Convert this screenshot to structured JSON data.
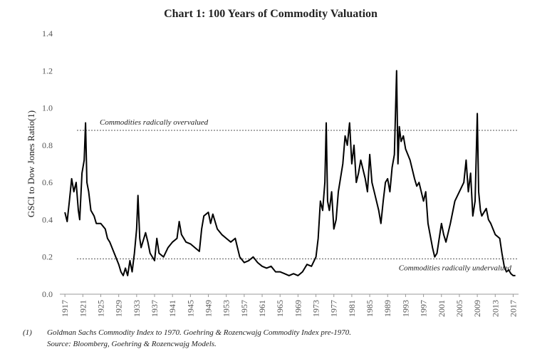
{
  "chart_data": {
    "type": "line",
    "title": "Chart 1: 100 Years of Commodity Valuation",
    "y_label": "GSCI to Dow Jones Ratio(1)",
    "x": [
      1917,
      1917.5,
      1918,
      1918.5,
      1919,
      1919.5,
      1920,
      1920.3,
      1920.8,
      1921.3,
      1921.6,
      1921.9,
      1922.3,
      1922.8,
      1923.5,
      1924,
      1925,
      1926,
      1926.5,
      1927,
      1928,
      1929,
      1929.5,
      1930,
      1930.5,
      1931,
      1931.5,
      1932,
      1932.5,
      1933,
      1933.3,
      1933.7,
      1934,
      1935,
      1935.5,
      1936,
      1937,
      1937.5,
      1938,
      1939,
      1940,
      1941,
      1942,
      1942.5,
      1943,
      1944,
      1945,
      1946,
      1947,
      1947.5,
      1948,
      1949,
      1949.5,
      1950,
      1951,
      1952,
      1953,
      1954,
      1955,
      1955.5,
      1956,
      1957,
      1958,
      1959,
      1960,
      1961,
      1962,
      1963,
      1964,
      1965,
      1966,
      1967,
      1968,
      1969,
      1970,
      1971,
      1972,
      1973,
      1973.5,
      1974,
      1974.5,
      1975,
      1975.3,
      1975.6,
      1976,
      1976.5,
      1977,
      1977.5,
      1978,
      1979,
      1979.5,
      1980,
      1980.5,
      1981,
      1981.5,
      1982,
      1982.5,
      1983,
      1984,
      1984.5,
      1985,
      1985.5,
      1986,
      1987,
      1987.5,
      1988,
      1988.5,
      1989,
      1989.5,
      1990,
      1990.5,
      1991,
      1991.3,
      1991.6,
      1992,
      1992.5,
      1993,
      1994,
      1995,
      1995.5,
      1996,
      1997,
      1997.5,
      1998,
      1999,
      1999.5,
      2000,
      2001,
      2001.5,
      2002,
      2003,
      2004,
      2005,
      2006,
      2006.5,
      2007,
      2007.5,
      2008,
      2008.5,
      2009,
      2009.3,
      2009.7,
      2010,
      2011,
      2011.5,
      2012,
      2013,
      2014,
      2014.5,
      2015,
      2015.5,
      2016,
      2016.5,
      2017,
      2017.5
    ],
    "series": [
      {
        "name": "GSCI to Dow Jones Ratio",
        "color": "#000000",
        "values": [
          0.44,
          0.39,
          0.5,
          0.62,
          0.55,
          0.6,
          0.45,
          0.4,
          0.65,
          0.72,
          0.92,
          0.6,
          0.55,
          0.45,
          0.42,
          0.38,
          0.38,
          0.35,
          0.3,
          0.28,
          0.22,
          0.16,
          0.12,
          0.1,
          0.14,
          0.1,
          0.18,
          0.12,
          0.22,
          0.35,
          0.53,
          0.3,
          0.25,
          0.33,
          0.28,
          0.22,
          0.18,
          0.3,
          0.22,
          0.2,
          0.25,
          0.28,
          0.3,
          0.39,
          0.32,
          0.28,
          0.27,
          0.25,
          0.23,
          0.35,
          0.42,
          0.44,
          0.38,
          0.43,
          0.35,
          0.32,
          0.3,
          0.28,
          0.3,
          0.25,
          0.2,
          0.17,
          0.18,
          0.2,
          0.17,
          0.15,
          0.14,
          0.15,
          0.12,
          0.12,
          0.11,
          0.1,
          0.11,
          0.1,
          0.12,
          0.16,
          0.15,
          0.2,
          0.3,
          0.5,
          0.45,
          0.6,
          0.92,
          0.5,
          0.45,
          0.55,
          0.35,
          0.4,
          0.55,
          0.7,
          0.85,
          0.8,
          0.92,
          0.7,
          0.8,
          0.6,
          0.65,
          0.72,
          0.62,
          0.55,
          0.75,
          0.6,
          0.55,
          0.45,
          0.38,
          0.5,
          0.6,
          0.62,
          0.55,
          0.68,
          0.75,
          1.2,
          0.7,
          0.9,
          0.82,
          0.85,
          0.78,
          0.72,
          0.62,
          0.58,
          0.6,
          0.5,
          0.55,
          0.38,
          0.25,
          0.2,
          0.22,
          0.38,
          0.32,
          0.28,
          0.38,
          0.5,
          0.55,
          0.6,
          0.72,
          0.55,
          0.65,
          0.42,
          0.5,
          0.97,
          0.55,
          0.45,
          0.42,
          0.46,
          0.4,
          0.38,
          0.32,
          0.3,
          0.22,
          0.15,
          0.12,
          0.13,
          0.11,
          0.1,
          0.1
        ]
      }
    ],
    "xlim": [
      1916.5,
      2018.2
    ],
    "xticks": [
      1917,
      1921,
      1925,
      1929,
      1933,
      1937,
      1941,
      1945,
      1949,
      1953,
      1957,
      1961,
      1965,
      1969,
      1973,
      1977,
      1981,
      1985,
      1989,
      1993,
      1997,
      2001,
      2005,
      2009,
      2013,
      2017
    ],
    "ylim": [
      0,
      1.4
    ],
    "yticks": [
      {
        "value": 0,
        "label": "0.0"
      },
      0.2,
      0.4,
      0.6,
      0.8,
      {
        "value": 1,
        "label": "1.0"
      },
      1.2,
      1.4
    ],
    "reference_lines": [
      {
        "value": 0.88,
        "label": "Commodities radically overvalued"
      },
      {
        "value": 0.19,
        "label": "Commodities radically undervalued"
      }
    ],
    "footnote": {
      "marker": "(1)",
      "lines": [
        "Goldman Sachs Commodity Index to 1970.  Goehring & Rozencwajg Commodity Index pre-1970.",
        "Source: Bloomberg, Goehring & Rozencwajg Models."
      ]
    }
  }
}
